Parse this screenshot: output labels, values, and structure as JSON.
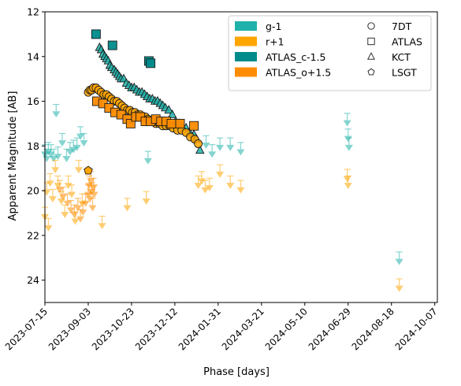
{
  "chart_data": {
    "type": "scatter",
    "title": "",
    "xlabel": "Phase [days]",
    "ylabel": "Apparent Magnitude [AB]",
    "x_axis": "date",
    "xlim": [
      "2023-07-15",
      "2024-10-10"
    ],
    "ylim": [
      25,
      12
    ],
    "y_inverted": true,
    "x_ticks": [
      "2023-07-15",
      "2023-09-03",
      "2023-10-23",
      "2023-12-12",
      "2024-01-31",
      "2024-03-21",
      "2024-05-10",
      "2024-06-29",
      "2024-08-18",
      "2024-10-07"
    ],
    "y_ticks": [
      12,
      14,
      16,
      18,
      20,
      22,
      24
    ],
    "grid": false,
    "legend": {
      "placement": "top-right",
      "bands": [
        {
          "label": "g-1",
          "color": "#20b2aa"
        },
        {
          "label": "r+1",
          "color": "#ffa500"
        },
        {
          "label": "ATLAS_c-1.5",
          "color": "#008b8b"
        },
        {
          "label": "ATLAS_o+1.5",
          "color": "#ff8c00"
        }
      ],
      "telescopes": [
        {
          "label": "7DT",
          "marker": "circle"
        },
        {
          "label": "ATLAS",
          "marker": "square"
        },
        {
          "label": "KCT",
          "marker": "triangle"
        },
        {
          "label": "LSGT",
          "marker": "pentagon"
        }
      ]
    },
    "series": [
      {
        "name": "g-1",
        "color": "#20b2aa",
        "marker": "triangle",
        "detections": [
          [
            "2023-09-16",
            13.6
          ],
          [
            "2023-09-18",
            13.7
          ],
          [
            "2023-09-20",
            13.9
          ],
          [
            "2023-09-22",
            14.0
          ],
          [
            "2023-09-24",
            14.1
          ],
          [
            "2023-09-26",
            14.2
          ],
          [
            "2023-09-28",
            14.4
          ],
          [
            "2023-09-30",
            14.5
          ],
          [
            "2023-10-03",
            14.6
          ],
          [
            "2023-10-05",
            14.7
          ],
          [
            "2023-10-07",
            14.8
          ],
          [
            "2023-10-09",
            14.9
          ],
          [
            "2023-10-11",
            15.0
          ],
          [
            "2023-10-14",
            15.0
          ],
          [
            "2023-10-17",
            15.2
          ],
          [
            "2023-10-20",
            15.3
          ],
          [
            "2023-10-23",
            15.4
          ],
          [
            "2023-10-26",
            15.4
          ],
          [
            "2023-10-29",
            15.5
          ],
          [
            "2023-11-01",
            15.6
          ],
          [
            "2023-11-04",
            15.6
          ],
          [
            "2023-11-07",
            15.7
          ],
          [
            "2023-11-10",
            15.8
          ],
          [
            "2023-11-13",
            15.9
          ],
          [
            "2023-11-16",
            15.9
          ],
          [
            "2023-11-19",
            16.0
          ],
          [
            "2023-11-22",
            16.0
          ],
          [
            "2023-11-25",
            16.1
          ],
          [
            "2023-11-28",
            16.2
          ],
          [
            "2023-12-01",
            16.3
          ],
          [
            "2023-12-05",
            16.4
          ],
          [
            "2023-12-09",
            16.6
          ],
          [
            "2023-12-13",
            16.9
          ],
          [
            "2023-12-17",
            17.0
          ],
          [
            "2023-12-21",
            17.2
          ],
          [
            "2023-12-25",
            17.2
          ],
          [
            "2023-12-29",
            17.4
          ],
          [
            "2024-01-03",
            17.5
          ],
          [
            "2024-01-06",
            17.7
          ],
          [
            "2024-01-10",
            18.2
          ]
        ],
        "upper_limits": [
          [
            "2023-07-15",
            18.4
          ],
          [
            "2023-07-17",
            18.6
          ],
          [
            "2023-07-19",
            18.3
          ],
          [
            "2023-07-22",
            18.4
          ],
          [
            "2023-07-25",
            18.6
          ],
          [
            "2023-07-28",
            16.6
          ],
          [
            "2023-07-30",
            18.5
          ],
          [
            "2023-08-04",
            17.9
          ],
          [
            "2023-08-09",
            18.6
          ],
          [
            "2023-08-13",
            18.3
          ],
          [
            "2023-08-17",
            18.2
          ],
          [
            "2023-08-21",
            18.1
          ],
          [
            "2023-08-25",
            17.6
          ],
          [
            "2023-08-29",
            17.9
          ],
          [
            "2023-11-11",
            18.7
          ],
          [
            "2024-01-17",
            18.0
          ],
          [
            "2024-01-24",
            18.4
          ],
          [
            "2024-02-02",
            18.1
          ],
          [
            "2024-02-14",
            18.1
          ],
          [
            "2024-02-26",
            18.3
          ],
          [
            "2024-06-28",
            17.0
          ],
          [
            "2024-06-29",
            17.7
          ],
          [
            "2024-06-30",
            18.1
          ],
          [
            "2024-08-27",
            23.2
          ]
        ]
      },
      {
        "name": "r+1",
        "color": "#ffa500",
        "marker": "circle",
        "detections": [
          [
            "2023-09-03",
            15.6
          ],
          [
            "2023-09-05",
            15.5
          ],
          [
            "2023-09-07",
            15.5
          ],
          [
            "2023-09-09",
            15.4
          ],
          [
            "2023-09-12",
            15.4
          ],
          [
            "2023-09-15",
            15.5
          ],
          [
            "2023-09-18",
            15.6
          ],
          [
            "2023-09-21",
            15.7
          ],
          [
            "2023-09-24",
            15.7
          ],
          [
            "2023-09-27",
            15.8
          ],
          [
            "2023-09-30",
            15.9
          ],
          [
            "2023-10-03",
            16.0
          ],
          [
            "2023-10-06",
            16.0
          ],
          [
            "2023-10-09",
            16.1
          ],
          [
            "2023-10-12",
            16.2
          ],
          [
            "2023-10-15",
            16.3
          ],
          [
            "2023-10-18",
            16.4
          ],
          [
            "2023-10-21",
            16.4
          ],
          [
            "2023-10-24",
            16.5
          ],
          [
            "2023-10-27",
            16.5
          ],
          [
            "2023-10-30",
            16.6
          ],
          [
            "2023-11-02",
            16.6
          ],
          [
            "2023-11-05",
            16.7
          ],
          [
            "2023-11-08",
            16.7
          ],
          [
            "2023-11-11",
            16.8
          ],
          [
            "2023-11-14",
            16.9
          ],
          [
            "2023-11-17",
            16.9
          ],
          [
            "2023-11-20",
            17.0
          ],
          [
            "2023-11-24",
            17.0
          ],
          [
            "2023-11-28",
            17.1
          ],
          [
            "2023-12-02",
            17.1
          ],
          [
            "2023-12-06",
            17.1
          ],
          [
            "2023-12-10",
            17.2
          ],
          [
            "2023-12-15",
            17.3
          ],
          [
            "2023-12-20",
            17.3
          ],
          [
            "2023-12-25",
            17.4
          ],
          [
            "2023-12-30",
            17.6
          ],
          [
            "2024-01-04",
            17.7
          ],
          [
            "2024-01-08",
            17.9
          ]
        ],
        "upper_limits": [
          [
            "2023-07-15",
            21.2
          ],
          [
            "2023-07-17",
            20.1
          ],
          [
            "2023-07-19",
            21.7
          ],
          [
            "2023-07-21",
            19.7
          ],
          [
            "2023-07-24",
            20.4
          ],
          [
            "2023-07-27",
            19.1
          ],
          [
            "2023-07-30",
            19.8
          ],
          [
            "2023-08-03",
            20.5
          ],
          [
            "2023-08-07",
            21.1
          ],
          [
            "2023-08-11",
            19.8
          ],
          [
            "2023-08-15",
            20.2
          ],
          [
            "2023-08-19",
            21.4
          ],
          [
            "2023-08-23",
            19.1
          ],
          [
            "2023-08-27",
            20.6
          ],
          [
            "2023-09-19",
            21.6
          ],
          [
            "2023-10-18",
            20.8
          ],
          [
            "2023-11-09",
            20.5
          ],
          [
            "2024-01-08",
            19.8
          ],
          [
            "2024-01-12",
            19.6
          ],
          [
            "2024-01-16",
            20.0
          ],
          [
            "2024-01-21",
            19.9
          ],
          [
            "2024-02-02",
            19.3
          ],
          [
            "2024-02-14",
            19.8
          ],
          [
            "2024-02-26",
            20.0
          ],
          [
            "2024-06-28",
            19.5
          ],
          [
            "2024-06-29",
            19.8
          ],
          [
            "2024-08-27",
            24.4
          ]
        ]
      },
      {
        "name": "ATLAS_c-1.5",
        "color": "#008b8b",
        "marker": "square",
        "detections": [
          [
            "2023-09-12",
            13.0
          ],
          [
            "2023-10-01",
            13.5
          ],
          [
            "2023-11-12",
            14.2
          ],
          [
            "2023-11-14",
            14.3
          ]
        ]
      },
      {
        "name": "ATLAS_o+1.5",
        "color": "#ff8c00",
        "marker": "square",
        "detections": [
          [
            "2023-09-13",
            16.0
          ],
          [
            "2023-09-20",
            16.1
          ],
          [
            "2023-09-27",
            16.3
          ],
          [
            "2023-10-04",
            16.5
          ],
          [
            "2023-10-11",
            16.6
          ],
          [
            "2023-10-18",
            16.8
          ],
          [
            "2023-10-22",
            17.0
          ],
          [
            "2023-10-28",
            16.7
          ],
          [
            "2023-11-02",
            16.7
          ],
          [
            "2023-11-08",
            16.9
          ],
          [
            "2023-11-14",
            16.9
          ],
          [
            "2023-11-20",
            16.8
          ],
          [
            "2023-11-26",
            16.9
          ],
          [
            "2023-12-02",
            16.9
          ],
          [
            "2023-12-08",
            17.0
          ],
          [
            "2023-12-18",
            17.0
          ],
          [
            "2024-01-03",
            17.1
          ]
        ],
        "upper_limits": [
          [
            "2023-08-01",
            20.0
          ],
          [
            "2023-08-05",
            20.3
          ],
          [
            "2023-08-10",
            20.6
          ],
          [
            "2023-08-14",
            20.9
          ],
          [
            "2023-08-18",
            21.1
          ],
          [
            "2023-08-22",
            20.8
          ],
          [
            "2023-08-25",
            21.3
          ],
          [
            "2023-08-28",
            21.0
          ],
          [
            "2023-08-31",
            20.6
          ],
          [
            "2023-09-03",
            20.2
          ],
          [
            "2023-09-04",
            19.8
          ],
          [
            "2023-09-05",
            20.4
          ],
          [
            "2023-09-06",
            19.6
          ],
          [
            "2023-09-07",
            20.1
          ],
          [
            "2023-09-08",
            20.8
          ],
          [
            "2023-09-09",
            19.9
          ],
          [
            "2023-09-10",
            20.2
          ]
        ]
      }
    ],
    "lsgt_points": [
      [
        "2023-09-03",
        19.1
      ]
    ]
  }
}
